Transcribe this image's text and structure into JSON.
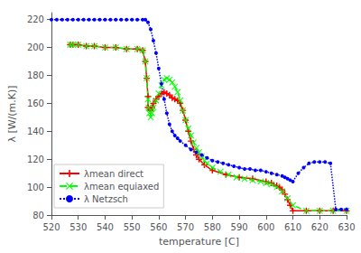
{
  "chart_data": {
    "type": "line",
    "xlabel": "temperature [C]",
    "ylabel": "λ [W/(m.K)]",
    "xlim": [
      520,
      630
    ],
    "ylim": [
      80,
      225
    ],
    "xticks": [
      520,
      530,
      540,
      550,
      560,
      570,
      580,
      590,
      600,
      610,
      620,
      630
    ],
    "yticks": [
      80,
      100,
      120,
      140,
      160,
      180,
      200,
      220
    ],
    "grid": false,
    "legend": "lower left",
    "series": [
      {
        "name": "λmean direct",
        "color": "red",
        "line_style": "solid",
        "marker": "plus",
        "x": [
          527,
          528,
          530,
          533,
          536,
          540,
          544,
          548,
          552,
          554,
          555,
          555.5,
          556,
          556,
          557,
          557.5,
          558,
          559,
          560,
          561,
          562,
          563,
          564,
          565,
          566,
          567,
          568,
          569,
          570,
          571,
          572,
          573,
          574,
          575,
          577,
          580,
          585,
          590,
          595,
          600,
          602,
          604,
          605,
          606,
          607,
          608,
          609,
          610,
          615,
          620,
          625,
          630
        ],
        "values": [
          202,
          202,
          202,
          201,
          201,
          200,
          200,
          199,
          199,
          198,
          190,
          178,
          165,
          157,
          155,
          157,
          160,
          163,
          165,
          167,
          168,
          167,
          166,
          164,
          163,
          162,
          160,
          155,
          148,
          140,
          133,
          127,
          123,
          120,
          116,
          112,
          109,
          107,
          106,
          104,
          103,
          101,
          100,
          98,
          95,
          91,
          87,
          83,
          83,
          83,
          83,
          83
        ]
      },
      {
        "name": "λmean equiaxed",
        "color": "lime",
        "line_style": "dashed",
        "marker": "x",
        "x": [
          527,
          528,
          530,
          533,
          536,
          540,
          544,
          548,
          552,
          554,
          555,
          555.5,
          556,
          556.2,
          556.5,
          557,
          557.5,
          558,
          559,
          560,
          561,
          562,
          563,
          564,
          565,
          566,
          567,
          568,
          569,
          570,
          571,
          572,
          573,
          574,
          575,
          576,
          577,
          578,
          580,
          583,
          586,
          589,
          592,
          595,
          598,
          600,
          602,
          604,
          606,
          608,
          610,
          615,
          620,
          625,
          630
        ],
        "values": [
          202,
          202,
          202,
          201,
          201,
          200,
          200,
          199,
          199,
          198,
          190,
          178,
          163,
          157,
          153,
          150,
          153,
          157,
          162,
          167,
          173,
          177,
          178,
          177,
          175,
          172,
          168,
          162,
          155,
          148,
          142,
          137,
          132,
          128,
          125,
          122,
          119,
          117,
          114,
          111,
          109,
          107,
          106,
          105,
          104,
          103,
          102,
          100,
          97,
          92,
          87,
          83,
          83,
          83,
          83
        ]
      },
      {
        "name": "λ Netzsch",
        "color": "blue",
        "line_style": "dotted",
        "marker": "dot",
        "x": [
          520,
          522,
          524,
          526,
          528,
          530,
          532,
          534,
          536,
          538,
          540,
          542,
          544,
          546,
          548,
          550,
          552,
          554,
          555,
          556,
          557,
          558,
          559,
          560,
          561,
          562,
          563,
          564,
          565,
          566,
          567,
          568,
          570,
          572,
          574,
          576,
          578,
          580,
          582,
          584,
          586,
          588,
          590,
          592,
          594,
          596,
          598,
          600,
          602,
          604,
          606,
          607,
          608,
          609,
          610,
          612,
          614,
          616,
          618,
          620,
          622,
          624,
          626,
          628,
          630
        ],
        "values": [
          220,
          220,
          220,
          220,
          220,
          220,
          220,
          220,
          220,
          220,
          220,
          220,
          220,
          220,
          220,
          220,
          220,
          220,
          220,
          218,
          213,
          205,
          196,
          185,
          174,
          163,
          153,
          145,
          140,
          137,
          135,
          133,
          130,
          127,
          125,
          123,
          121,
          119,
          118,
          117,
          116,
          115,
          114,
          113,
          113,
          112,
          112,
          111,
          110,
          109,
          108,
          107,
          106,
          105,
          104,
          110,
          114,
          117,
          118,
          118,
          118,
          117,
          84,
          84,
          84
        ]
      }
    ]
  }
}
